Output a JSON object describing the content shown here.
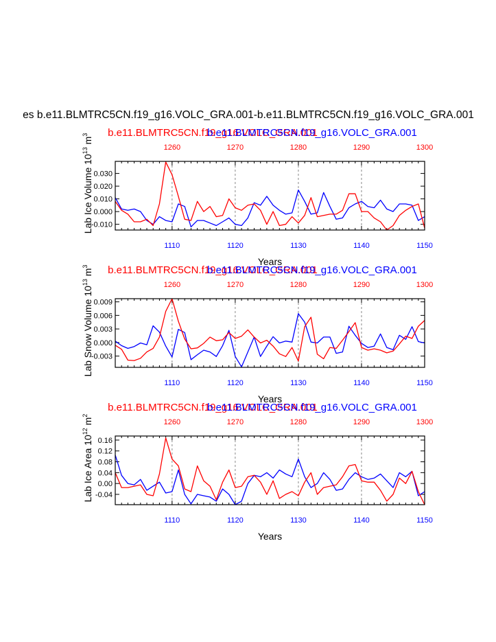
{
  "figure": {
    "main_title": "es b.e11.BLMTRC5CN.f19_g16.VOLC_GRA.001-b.e11.BLMTRC5CN.f19_g16.VOLC_GRA.001",
    "colors": {
      "top_axis": "#ff0000",
      "bottom_axis": "#0000ff",
      "text": "#000000",
      "grid": "#888888"
    }
  },
  "chart_data": [
    {
      "type": "line",
      "ylabel": "Lab Ice Volume 10^13 m^3",
      "ylabel_main": "Lab Ice Volume 10",
      "ylabel_exp1": "13",
      "ylabel_mid": " m",
      "ylabel_exp2": "3",
      "xlabel": "Years",
      "title_left": "b.e11.BLMTRC5CN.f19_g16.VOLC_GRA.001",
      "title_right": "b.e11.BLMTRC5CN.f19_g16.VOLC_GRA.001",
      "ylim": [
        -0.0145,
        0.0395
      ],
      "yticks": [
        -0.01,
        0.0,
        0.01,
        0.02,
        0.03
      ],
      "ytick_labels": [
        "-0.010",
        "0.000",
        "0.010",
        "0.020",
        "0.030"
      ],
      "xlim_bottom": [
        1101,
        1150
      ],
      "xticks_bottom": [
        1110,
        1120,
        1130,
        1140,
        1150
      ],
      "xlim_top": [
        1251,
        1300
      ],
      "xticks_top": [
        1260,
        1270,
        1280,
        1290,
        1300
      ],
      "grid_x": [
        1110,
        1120,
        1130,
        1140
      ],
      "series": [
        {
          "name": "b.e11.BLMTRC5CN.f19_g16.VOLC_GRA.001 (years 1101-1150)",
          "axis": "bottom",
          "values": [
            0.011,
            0.002,
            0.001,
            0.002,
            0.0,
            -0.007,
            -0.01,
            -0.004,
            -0.007,
            -0.008,
            0.006,
            0.004,
            -0.012,
            -0.007,
            -0.007,
            -0.009,
            -0.011,
            -0.008,
            -0.005,
            -0.01,
            -0.011,
            -0.005,
            0.007,
            0.005,
            0.012,
            0.005,
            0.001,
            -0.002,
            -0.001,
            0.017,
            0.008,
            -0.002,
            -0.001,
            0.015,
            0.004,
            -0.006,
            -0.005,
            0.003,
            0.006,
            0.008,
            0.004,
            0.003,
            0.009,
            0.002,
            0.0,
            0.006,
            0.006,
            0.005,
            -0.007,
            -0.004
          ]
        },
        {
          "name": "b.e11.BLMTRC5CN.f19_g16.VOLC_GRA.001 (years 1251-1300)",
          "axis": "top",
          "values": [
            0.008,
            0.001,
            -0.002,
            -0.008,
            -0.008,
            -0.006,
            -0.011,
            0.006,
            0.039,
            0.029,
            0.012,
            -0.006,
            -0.007,
            0.008,
            0.0,
            0.004,
            -0.004,
            -0.003,
            0.01,
            0.003,
            0.001,
            0.005,
            0.006,
            0.001,
            -0.01,
            0.0,
            -0.011,
            -0.01,
            -0.004,
            -0.009,
            -0.003,
            0.011,
            -0.004,
            -0.003,
            -0.002,
            -0.002,
            0.001,
            0.014,
            0.014,
            0.0,
            0.0,
            -0.005,
            -0.008,
            -0.015,
            -0.011,
            -0.003,
            0.001,
            0.004,
            0.006,
            -0.013
          ]
        }
      ]
    },
    {
      "type": "line",
      "ylabel": "Lab Snow Volume 10^13 m^3",
      "ylabel_main": "Lab Snow Volume 10",
      "ylabel_exp1": "13",
      "ylabel_mid": " m",
      "ylabel_exp2": "3",
      "xlabel": "Years",
      "title_left": "b.e11.BLMTRC5CN.f19_g16.VOLC_GRA.001",
      "title_right": "b.e11.BLMTRC5CN.f19_g16.VOLC_GRA.001",
      "ylim": [
        -0.0055,
        0.0097
      ],
      "yticks": [
        -0.003,
        0.0,
        0.003,
        0.006,
        0.009
      ],
      "ytick_labels": [
        "-0.003",
        "0.000",
        "0.003",
        "0.006",
        "0.009"
      ],
      "xlim_bottom": [
        1101,
        1150
      ],
      "xticks_bottom": [
        1110,
        1120,
        1130,
        1140,
        1150
      ],
      "xlim_top": [
        1251,
        1300
      ],
      "xticks_top": [
        1260,
        1270,
        1280,
        1290,
        1300
      ],
      "grid_x": [
        1110,
        1120,
        1130,
        1140
      ],
      "series": [
        {
          "name": "b.e11.BLMTRC5CN.f19_g16.VOLC_GRA.001 (years 1101-1150)",
          "axis": "bottom",
          "values": [
            0.0003,
            -0.0007,
            -0.0013,
            -0.0009,
            -0.0001,
            -0.0005,
            0.0037,
            0.0023,
            -0.0008,
            -0.0032,
            0.0029,
            0.0022,
            -0.0038,
            -0.0027,
            -0.0017,
            -0.0021,
            -0.0031,
            -0.0007,
            0.0027,
            -0.0031,
            -0.0054,
            -0.0021,
            0.0012,
            -0.0031,
            -0.0008,
            0.0013,
            -0.0001,
            0.0003,
            0.0001,
            0.0064,
            0.0045,
            0.0001,
            -0.0001,
            0.0012,
            0.0012,
            -0.0024,
            -0.0021,
            0.0036,
            0.0016,
            -0.0002,
            -0.0011,
            -0.0008,
            0.0019,
            -0.0011,
            -0.0016,
            0.0016,
            0.0007,
            0.0035,
            0.0002,
            -0.0001
          ]
        },
        {
          "name": "b.e11.BLMTRC5CN.f19_g16.VOLC_GRA.001 (years 1251-1300)",
          "axis": "top",
          "values": [
            -0.0006,
            -0.0015,
            -0.0039,
            -0.004,
            -0.0035,
            -0.0021,
            -0.0013,
            0.0012,
            0.0069,
            0.0097,
            0.0047,
            0.0008,
            -0.0014,
            -0.0012,
            -0.0002,
            0.0012,
            0.0004,
            0.0006,
            0.0022,
            0.0009,
            0.0014,
            0.0028,
            0.0012,
            -0.0001,
            0.0005,
            -0.0008,
            -0.0025,
            -0.0031,
            -0.0011,
            -0.0041,
            0.0035,
            0.0056,
            -0.0026,
            -0.0036,
            -0.0011,
            -0.0013,
            0.0005,
            0.0024,
            0.0044,
            -0.0011,
            -0.0017,
            -0.0014,
            -0.0017,
            -0.0023,
            -0.0019,
            -0.0003,
            0.0014,
            0.0009,
            0.0036,
            0.0049
          ]
        }
      ]
    },
    {
      "type": "line",
      "ylabel": "Lab Ice Area 10^12 m^2",
      "ylabel_main": "Lab Ice Area 10",
      "ylabel_exp1": "12",
      "ylabel_mid": " m",
      "ylabel_exp2": "2",
      "xlabel": "Years",
      "title_left": "b.e11.BLMTRC5CN.f19_g16.VOLC_GRA.001",
      "title_right": "b.e11.BLMTRC5CN.f19_g16.VOLC_GRA.001",
      "ylim": [
        -0.078,
        0.175
      ],
      "yticks": [
        -0.04,
        0.0,
        0.04,
        0.08,
        0.12,
        0.16
      ],
      "ytick_labels": [
        "-0.04",
        "0.00",
        "0.04",
        "0.08",
        "0.12",
        "0.16"
      ],
      "xlim_bottom": [
        1101,
        1150
      ],
      "xticks_bottom": [
        1110,
        1120,
        1130,
        1140,
        1150
      ],
      "xlim_top": [
        1251,
        1300
      ],
      "xticks_top": [
        1260,
        1270,
        1280,
        1290,
        1300
      ],
      "grid_x": [
        1110,
        1120,
        1130,
        1140
      ],
      "series": [
        {
          "name": "b.e11.BLMTRC5CN.f19_g16.VOLC_GRA.001 (years 1101-1150)",
          "axis": "bottom",
          "values": [
            0.105,
            0.03,
            0.0,
            -0.005,
            0.015,
            -0.025,
            -0.01,
            0.005,
            -0.035,
            -0.03,
            0.05,
            -0.04,
            -0.075,
            -0.04,
            -0.045,
            -0.05,
            -0.065,
            -0.02,
            -0.04,
            -0.078,
            -0.065,
            0.0,
            0.03,
            0.025,
            0.04,
            0.02,
            0.05,
            0.035,
            0.025,
            0.09,
            0.025,
            -0.015,
            0.0,
            0.04,
            0.015,
            -0.025,
            -0.02,
            0.015,
            0.04,
            0.025,
            0.015,
            0.02,
            0.035,
            0.01,
            -0.015,
            0.04,
            0.025,
            0.045,
            -0.045,
            -0.03
          ]
        },
        {
          "name": "b.e11.BLMTRC5CN.f19_g16.VOLC_GRA.001 (years 1251-1300)",
          "axis": "top",
          "values": [
            0.04,
            -0.015,
            -0.015,
            -0.01,
            -0.005,
            -0.04,
            -0.045,
            0.035,
            0.168,
            0.09,
            0.065,
            -0.02,
            -0.03,
            0.065,
            0.01,
            -0.01,
            -0.06,
            0.005,
            0.05,
            -0.015,
            -0.01,
            0.025,
            0.03,
            0.005,
            -0.04,
            0.01,
            -0.055,
            -0.04,
            -0.03,
            -0.045,
            0.005,
            0.04,
            -0.04,
            -0.015,
            -0.01,
            -0.005,
            0.025,
            0.065,
            0.07,
            0.01,
            0.005,
            0.005,
            -0.025,
            -0.065,
            -0.04,
            0.02,
            0.0,
            0.045,
            -0.03,
            -0.078
          ]
        }
      ]
    }
  ]
}
